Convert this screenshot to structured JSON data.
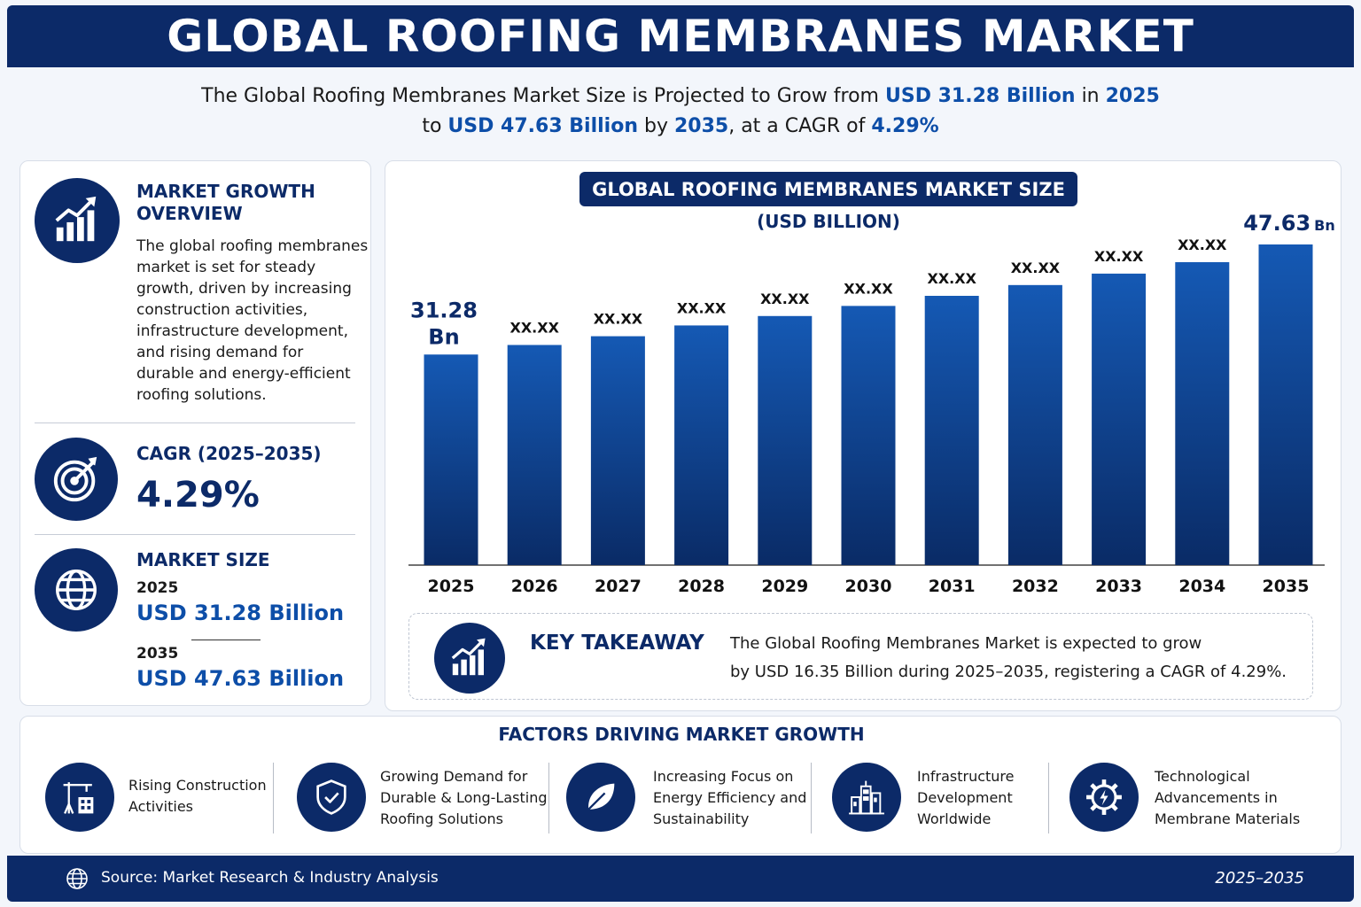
{
  "header": {
    "title": "GLOBAL ROOFING MEMBRANES MARKET"
  },
  "subtitle": {
    "l1_a": "The Global Roofing Membranes Market Size is Projected to Grow from ",
    "l1_b": "USD 31.28 Billion",
    "l1_c": " in ",
    "l1_d": "2025",
    "l2_a": "to ",
    "l2_b": "USD 47.63 Billion",
    "l2_c": " by ",
    "l2_d": "2035",
    "l2_e": ", at a CAGR of ",
    "l2_f": "4.29%"
  },
  "left_panel": {
    "growth_title_1": "MARKET GROWTH",
    "growth_title_2": "OVERVIEW",
    "growth_text": [
      "The global roofing membranes",
      "market is set for steady",
      "growth, driven by increasing",
      "construction activities,",
      "infrastructure development,",
      "and rising demand for",
      "durable and energy-efficient",
      "roofing solutions."
    ],
    "cagr_title": "CAGR (2025–2035)",
    "cagr_value": "4.29%",
    "size_title": "MARKET SIZE",
    "size_year_1": "2025",
    "size_value_1": "USD 31.28 Billion",
    "size_year_2": "2035",
    "size_value_2": "USD 47.63 Billion",
    "icons": [
      "growth-chart-icon",
      "target-icon",
      "globe-icon"
    ]
  },
  "chart_data": {
    "type": "bar",
    "title": "GLOBAL ROOFING MEMBRANES MARKET SIZE",
    "unit_label": "(USD BILLION)",
    "categories": [
      "2025",
      "2026",
      "2027",
      "2028",
      "2029",
      "2030",
      "2031",
      "2032",
      "2033",
      "2034",
      "2035"
    ],
    "values": [
      31.28,
      32.7,
      34.0,
      35.6,
      37.0,
      38.5,
      40.0,
      41.6,
      43.3,
      45.0,
      47.63
    ],
    "data_labels": [
      "31.28 Bn",
      "XX.XX",
      "XX.XX",
      "XX.XX",
      "XX.XX",
      "XX.XX",
      "XX.XX",
      "XX.XX",
      "XX.XX",
      "XX.XX",
      "47.63 Bn"
    ],
    "ylim": [
      0,
      47.63
    ],
    "grid": false,
    "bar_color_top": "#1559b4",
    "bar_color_bottom": "#0a2b66"
  },
  "takeaway": {
    "title": "KEY TAKEAWAY",
    "line1": "The Global Roofing Membranes Market is expected to grow",
    "line2": "by USD 16.35 Billion during 2025–2035, registering a CAGR of 4.29%.",
    "icon": "growth-chart-icon"
  },
  "factors": {
    "title": "FACTORS DRIVING MARKET GROWTH",
    "items": [
      {
        "icon": "crane-building-icon",
        "lines": [
          "Rising Construction",
          "Activities"
        ]
      },
      {
        "icon": "shield-check-icon",
        "lines": [
          "Growing Demand for",
          "Durable & Long-Lasting",
          "Roofing Solutions"
        ]
      },
      {
        "icon": "leaf-icon",
        "lines": [
          "Increasing Focus on",
          "Energy Efficiency and",
          "Sustainability"
        ]
      },
      {
        "icon": "city-buildings-icon",
        "lines": [
          "Infrastructure",
          "Development",
          "Worldwide"
        ]
      },
      {
        "icon": "gear-bolt-icon",
        "lines": [
          "Technological",
          "Advancements in",
          "Membrane Materials"
        ]
      }
    ]
  },
  "footer": {
    "source": "Source: Market Research & Industry Analysis",
    "years": "2025–2035",
    "icon": "globe-icon"
  },
  "colors": {
    "navy": "#0c2a68",
    "accent_blue": "#0d4ea8",
    "panel_bg": "#ffffff",
    "page_bg": "#f3f6fb"
  }
}
